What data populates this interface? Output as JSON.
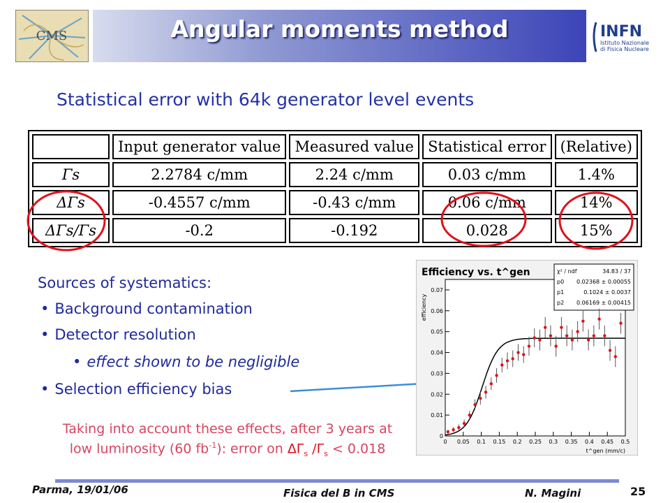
{
  "header": {
    "title": "Angular moments method",
    "logo_right_text": [
      "INFN",
      "Istituto Nazionale",
      "di Fisica Nucleare"
    ],
    "logo_left_text": "CMS"
  },
  "subtitle": "Statistical error with 64k generator level events",
  "table": {
    "headers": [
      "",
      "Input generator value",
      "Measured value",
      "Statistical error",
      "(Relative)"
    ],
    "rows": [
      {
        "param": "Γs",
        "input": "2.2784 c/mm",
        "measured": "2.24 c/mm",
        "stat": "0.03 c/mm",
        "rel": "1.4%"
      },
      {
        "param": "ΔΓs",
        "input": "-0.4557 c/mm",
        "measured": "-0.43 c/mm",
        "stat": "0.06 c/mm",
        "rel": "14%"
      },
      {
        "param": "ΔΓs/Γs",
        "input": "-0.2",
        "measured": "-0.192",
        "stat": "0.028",
        "rel": "15%"
      }
    ]
  },
  "systematics": {
    "title": "Sources of systematics:",
    "items": [
      "Background contamination",
      "Detector resolution",
      "effect shown to be negligible",
      "Selection efficiency bias"
    ]
  },
  "note": {
    "line1": "Taking into account these effects, after 3 years at",
    "line2_a": "low luminosity (60 fb",
    "line2_sup": "-1",
    "line2_b": "): error on ",
    "line2_c": "ΔΓ",
    "line2_s1": "s",
    "line2_d": " /Γ",
    "line2_s2": "s",
    "line2_e": " < 0.018"
  },
  "footer": {
    "left": "Parma, 19/01/06",
    "center": "Fisica del B in CMS",
    "author": "N. Magini",
    "page": "25"
  },
  "colors": {
    "accent_blue": "#1f2a9b",
    "note_red": "#d6455f",
    "highlight_red": "#e0101a"
  },
  "chart_data": {
    "type": "scatter",
    "title": "Efficiency vs. t^gen",
    "xlabel": "t^gen (mm/c)",
    "ylabel": "efficiency",
    "xlim": [
      0,
      0.5
    ],
    "ylim": [
      0,
      0.075
    ],
    "xticks": [
      "0",
      "0.05",
      "0.1",
      "0.15",
      "0.2",
      "0.25",
      "0.3",
      "0.35",
      "0.4",
      "0.45",
      "0.5"
    ],
    "yticks": [
      "0",
      "0.01",
      "0.02",
      "0.03",
      "0.04",
      "0.05",
      "0.06",
      "0.07"
    ],
    "stats": [
      {
        "label": "χ² / ndf",
        "value": "34.83 / 37"
      },
      {
        "label": "p0",
        "value": "0.02368 ± 0.00055"
      },
      {
        "label": "p1",
        "value": "0.1024 ± 0.0037"
      },
      {
        "label": "p2",
        "value": "0.06169 ± 0.00415"
      }
    ],
    "points": [
      {
        "x": 0.0075,
        "y": 0.002,
        "e": 0.001
      },
      {
        "x": 0.0225,
        "y": 0.003,
        "e": 0.0012
      },
      {
        "x": 0.0375,
        "y": 0.004,
        "e": 0.0015
      },
      {
        "x": 0.0525,
        "y": 0.006,
        "e": 0.0018
      },
      {
        "x": 0.0675,
        "y": 0.01,
        "e": 0.002
      },
      {
        "x": 0.0825,
        "y": 0.015,
        "e": 0.0025
      },
      {
        "x": 0.0975,
        "y": 0.018,
        "e": 0.003
      },
      {
        "x": 0.1125,
        "y": 0.021,
        "e": 0.003
      },
      {
        "x": 0.1275,
        "y": 0.025,
        "e": 0.003
      },
      {
        "x": 0.1425,
        "y": 0.029,
        "e": 0.0035
      },
      {
        "x": 0.1575,
        "y": 0.034,
        "e": 0.0035
      },
      {
        "x": 0.1725,
        "y": 0.036,
        "e": 0.004
      },
      {
        "x": 0.1875,
        "y": 0.037,
        "e": 0.004
      },
      {
        "x": 0.2025,
        "y": 0.04,
        "e": 0.004
      },
      {
        "x": 0.2175,
        "y": 0.039,
        "e": 0.004
      },
      {
        "x": 0.2325,
        "y": 0.043,
        "e": 0.0045
      },
      {
        "x": 0.2475,
        "y": 0.047,
        "e": 0.0045
      },
      {
        "x": 0.2625,
        "y": 0.046,
        "e": 0.005
      },
      {
        "x": 0.2775,
        "y": 0.052,
        "e": 0.005
      },
      {
        "x": 0.2925,
        "y": 0.048,
        "e": 0.005
      },
      {
        "x": 0.3075,
        "y": 0.043,
        "e": 0.005
      },
      {
        "x": 0.3225,
        "y": 0.052,
        "e": 0.005
      },
      {
        "x": 0.3375,
        "y": 0.048,
        "e": 0.005
      },
      {
        "x": 0.3525,
        "y": 0.046,
        "e": 0.005
      },
      {
        "x": 0.3675,
        "y": 0.05,
        "e": 0.005
      },
      {
        "x": 0.3825,
        "y": 0.055,
        "e": 0.005
      },
      {
        "x": 0.3975,
        "y": 0.046,
        "e": 0.005
      },
      {
        "x": 0.4125,
        "y": 0.048,
        "e": 0.005
      },
      {
        "x": 0.4275,
        "y": 0.056,
        "e": 0.005
      },
      {
        "x": 0.4425,
        "y": 0.048,
        "e": 0.005
      },
      {
        "x": 0.4575,
        "y": 0.041,
        "e": 0.005
      },
      {
        "x": 0.4725,
        "y": 0.038,
        "e": 0.005
      },
      {
        "x": 0.4875,
        "y": 0.054,
        "e": 0.005
      }
    ]
  }
}
